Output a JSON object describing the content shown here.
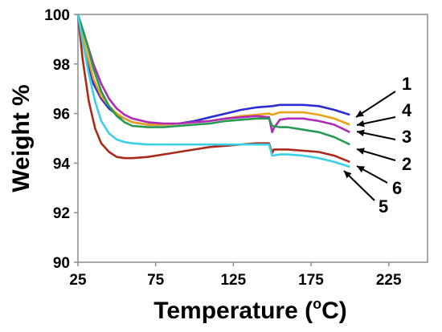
{
  "chart_data": {
    "type": "line",
    "xlabel": "Temperature (",
    "xlabel_sup": "o",
    "xlabel_unit": "C)",
    "ylabel": "Weight %",
    "xlim": [
      25,
      250
    ],
    "ylim": [
      90,
      100
    ],
    "xticks": [
      25,
      75,
      125,
      175,
      225
    ],
    "yticks": [
      90,
      92,
      94,
      96,
      98,
      100
    ],
    "grid": false,
    "series": [
      {
        "name": "1",
        "color": "#2b2bd6",
        "x": [
          25,
          30,
          35,
          40,
          45,
          50,
          55,
          60,
          70,
          80,
          90,
          100,
          110,
          120,
          130,
          140,
          150,
          155,
          160,
          170,
          180,
          190,
          200
        ],
        "y": [
          100,
          98.4,
          97.2,
          96.6,
          96.2,
          95.95,
          95.8,
          95.65,
          95.55,
          95.55,
          95.6,
          95.7,
          95.85,
          96.0,
          96.15,
          96.25,
          96.3,
          96.35,
          96.35,
          96.35,
          96.3,
          96.15,
          95.95
        ]
      },
      {
        "name": "4",
        "color": "#e8a317",
        "x": [
          25,
          30,
          35,
          40,
          45,
          50,
          55,
          60,
          70,
          80,
          90,
          100,
          110,
          120,
          130,
          140,
          148,
          150,
          155,
          160,
          170,
          180,
          190,
          200
        ],
        "y": [
          100,
          98.6,
          97.4,
          96.7,
          96.3,
          96.0,
          95.8,
          95.65,
          95.55,
          95.55,
          95.6,
          95.65,
          95.7,
          95.8,
          95.9,
          95.95,
          96.0,
          95.95,
          96.05,
          96.05,
          96.05,
          95.95,
          95.8,
          95.55
        ]
      },
      {
        "name": "3",
        "color": "#b02ab8",
        "x": [
          25,
          30,
          35,
          40,
          45,
          50,
          55,
          60,
          70,
          80,
          90,
          100,
          110,
          120,
          130,
          140,
          148,
          150,
          151,
          155,
          160,
          170,
          180,
          190,
          200
        ],
        "y": [
          100,
          99.0,
          98.0,
          97.2,
          96.6,
          96.2,
          95.95,
          95.8,
          95.65,
          95.6,
          95.6,
          95.65,
          95.7,
          95.8,
          95.85,
          95.9,
          95.85,
          95.25,
          95.4,
          95.75,
          95.8,
          95.8,
          95.7,
          95.55,
          95.25
        ]
      },
      {
        "name": "2",
        "color": "#279a52",
        "x": [
          25,
          30,
          35,
          40,
          45,
          50,
          55,
          60,
          70,
          80,
          90,
          100,
          110,
          120,
          130,
          140,
          148,
          150,
          155,
          160,
          170,
          180,
          190,
          200
        ],
        "y": [
          100,
          99.0,
          97.8,
          96.9,
          96.3,
          95.9,
          95.65,
          95.5,
          95.45,
          95.45,
          95.5,
          95.55,
          95.6,
          95.7,
          95.75,
          95.8,
          95.8,
          95.5,
          95.45,
          95.45,
          95.35,
          95.25,
          95.05,
          94.75
        ]
      },
      {
        "name": "6",
        "color": "#aa2a1a",
        "x": [
          25,
          28,
          32,
          36,
          40,
          45,
          50,
          55,
          60,
          70,
          80,
          90,
          100,
          110,
          120,
          130,
          140,
          148,
          150,
          151,
          155,
          160,
          170,
          180,
          190,
          200
        ],
        "y": [
          100,
          98.2,
          96.5,
          95.4,
          94.8,
          94.45,
          94.25,
          94.2,
          94.2,
          94.25,
          94.35,
          94.45,
          94.55,
          94.65,
          94.7,
          94.75,
          94.8,
          94.8,
          94.4,
          94.55,
          94.55,
          94.55,
          94.5,
          94.45,
          94.3,
          94.05
        ]
      },
      {
        "name": "5",
        "color": "#3ad0e8",
        "x": [
          25,
          28,
          32,
          36,
          40,
          45,
          50,
          55,
          60,
          70,
          80,
          90,
          100,
          110,
          120,
          130,
          140,
          148,
          150,
          155,
          160,
          170,
          180,
          190,
          200
        ],
        "y": [
          100,
          98.9,
          97.6,
          96.5,
          95.7,
          95.2,
          94.95,
          94.85,
          94.8,
          94.75,
          94.75,
          94.75,
          94.75,
          94.75,
          94.75,
          94.75,
          94.75,
          94.75,
          94.3,
          94.35,
          94.35,
          94.3,
          94.2,
          94.05,
          93.85
        ]
      }
    ],
    "series_label_order": [
      "1",
      "4",
      "3",
      "2",
      "6",
      "5"
    ]
  }
}
